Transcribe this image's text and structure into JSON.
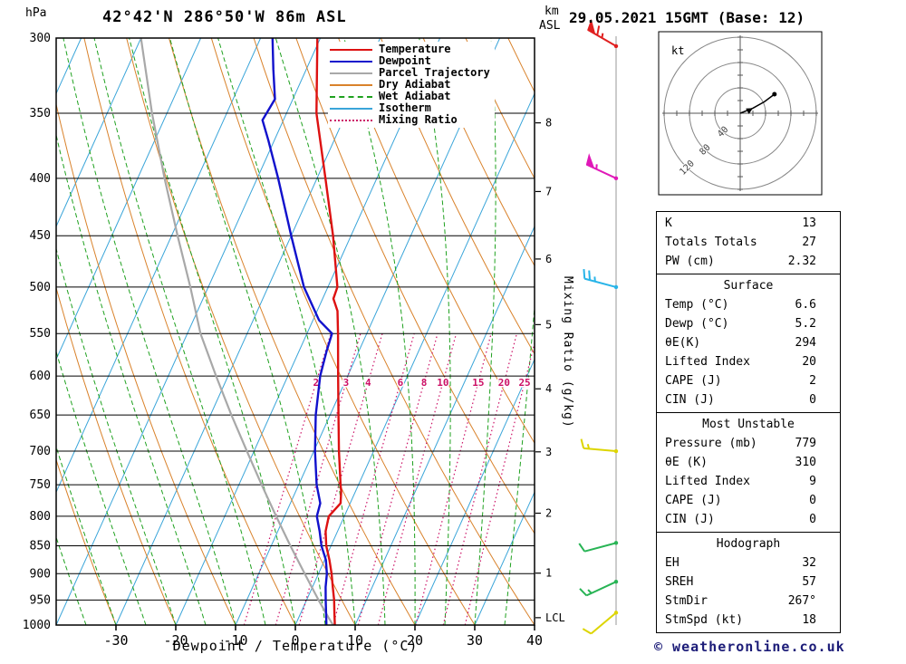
{
  "header": {
    "station": "42°42'N 286°50'W 86m ASL",
    "datetime": "29.05.2021 15GMT (Base: 12)"
  },
  "axes": {
    "pressure_unit": "hPa",
    "altitude_unit_line1": "km",
    "altitude_unit_line2": "ASL",
    "pressure_ticks": [
      300,
      350,
      400,
      450,
      500,
      550,
      600,
      650,
      700,
      750,
      800,
      850,
      900,
      950,
      1000
    ],
    "temp_ticks": [
      -30,
      -20,
      -10,
      0,
      10,
      20,
      30,
      40
    ],
    "xlabel": "Dewpoint / Temperature (°C)",
    "right_axis_label": "Mixing Ratio (g/kg)",
    "km_ticks": [
      {
        "km": 8,
        "p": 357
      },
      {
        "km": 7,
        "p": 411
      },
      {
        "km": 6,
        "p": 472
      },
      {
        "km": 5,
        "p": 540
      },
      {
        "km": 4,
        "p": 616
      },
      {
        "km": 3,
        "p": 701
      },
      {
        "km": 2,
        "p": 795
      },
      {
        "km": 1,
        "p": 899
      }
    ],
    "lcl_label": "LCL",
    "lcl_pressure": 985
  },
  "legend": [
    {
      "label": "Temperature",
      "color": "#dd1111",
      "style": "solid"
    },
    {
      "label": "Dewpoint",
      "color": "#1111cc",
      "style": "solid"
    },
    {
      "label": "Parcel Trajectory",
      "color": "#a8a8a8",
      "style": "solid"
    },
    {
      "label": "Dry Adiabat",
      "color": "#d9822b",
      "style": "solid"
    },
    {
      "label": "Wet Adiabat",
      "color": "#1fa11f",
      "style": "dashed"
    },
    {
      "label": "Isotherm",
      "color": "#3aa5d9",
      "style": "solid"
    },
    {
      "label": "Mixing Ratio",
      "color": "#cc1166",
      "style": "dotted"
    }
  ],
  "chart_data": {
    "type": "skewt-logp",
    "pressure_axis": {
      "min": 300,
      "max": 1000,
      "scale": "log"
    },
    "temp_axis": {
      "min": -40,
      "max": 40,
      "unit": "°C"
    },
    "skew": 0.45,
    "isotherm_step": 10,
    "dry_adiabat_step": 10,
    "wet_adiabat_step": 5,
    "mixing_ratio_labels": [
      2,
      3,
      4,
      6,
      8,
      10,
      15,
      20,
      25
    ],
    "colors": {
      "temperature": "#dd1111",
      "dewpoint": "#1111cc",
      "parcel": "#a8a8a8",
      "dry_adiabat": "#d9822b",
      "wet_adiabat": "#1fa11f",
      "isotherm": "#3aa5d9",
      "mixing_ratio": "#cc1166",
      "grid": "#000000",
      "barb_line": "#999999"
    },
    "temperature_profile": [
      [
        1000,
        6.6
      ],
      [
        975,
        5.6
      ],
      [
        950,
        4.6
      ],
      [
        925,
        3.4
      ],
      [
        900,
        2.2
      ],
      [
        875,
        0.8
      ],
      [
        850,
        -0.8
      ],
      [
        825,
        -2.0
      ],
      [
        800,
        -2.6
      ],
      [
        779,
        -1.6
      ],
      [
        760,
        -2.4
      ],
      [
        750,
        -3.0
      ],
      [
        700,
        -5.8
      ],
      [
        650,
        -8.6
      ],
      [
        600,
        -11.6
      ],
      [
        550,
        -14.8
      ],
      [
        525,
        -16.6
      ],
      [
        512,
        -18.2
      ],
      [
        500,
        -18.4
      ],
      [
        450,
        -23.0
      ],
      [
        400,
        -28.6
      ],
      [
        350,
        -35.0
      ],
      [
        300,
        -40.5
      ]
    ],
    "dewpoint_profile": [
      [
        1000,
        5.2
      ],
      [
        975,
        4.2
      ],
      [
        950,
        3.2
      ],
      [
        925,
        2.2
      ],
      [
        900,
        1.4
      ],
      [
        875,
        0.2
      ],
      [
        850,
        -1.6
      ],
      [
        825,
        -3.0
      ],
      [
        800,
        -4.6
      ],
      [
        779,
        -5.0
      ],
      [
        750,
        -7.0
      ],
      [
        700,
        -9.8
      ],
      [
        650,
        -12.4
      ],
      [
        600,
        -14.6
      ],
      [
        570,
        -15.4
      ],
      [
        550,
        -15.8
      ],
      [
        535,
        -19.0
      ],
      [
        500,
        -24.0
      ],
      [
        450,
        -30.0
      ],
      [
        400,
        -36.5
      ],
      [
        370,
        -41.0
      ],
      [
        355,
        -43.5
      ],
      [
        340,
        -43.0
      ],
      [
        320,
        -45.5
      ],
      [
        300,
        -48.0
      ]
    ],
    "parcel_profile": [
      [
        1000,
        6.3
      ],
      [
        985,
        5.0
      ],
      [
        950,
        2.0
      ],
      [
        900,
        -2.3
      ],
      [
        850,
        -6.8
      ],
      [
        800,
        -11.4
      ],
      [
        750,
        -16.2
      ],
      [
        700,
        -21.2
      ],
      [
        650,
        -26.5
      ],
      [
        600,
        -32.0
      ],
      [
        550,
        -37.8
      ],
      [
        500,
        -43.0
      ],
      [
        450,
        -49.0
      ],
      [
        400,
        -55.5
      ],
      [
        350,
        -62.5
      ],
      [
        300,
        -70.0
      ]
    ],
    "wind_barbs": [
      {
        "p": 305,
        "dir": 300,
        "speed": 65,
        "color": "#e02020"
      },
      {
        "p": 400,
        "dir": 295,
        "speed": 55,
        "color": "#e019b8"
      },
      {
        "p": 500,
        "dir": 285,
        "speed": 25,
        "color": "#28b4e8"
      },
      {
        "p": 700,
        "dir": 275,
        "speed": 15,
        "color": "#ddd500"
      },
      {
        "p": 845,
        "dir": 255,
        "speed": 10,
        "color": "#28b455"
      },
      {
        "p": 915,
        "dir": 245,
        "speed": 15,
        "color": "#28b455"
      },
      {
        "p": 975,
        "dir": 230,
        "speed": 10,
        "color": "#ddd500"
      }
    ],
    "hodograph": {
      "unit": "kt",
      "ring_step_kt": 40,
      "ring_labels": [
        "120",
        "80",
        "40"
      ],
      "trace_kt": [
        [
          0,
          0
        ],
        [
          20,
          8
        ],
        [
          38,
          18
        ],
        [
          54,
          30
        ]
      ]
    }
  },
  "table": {
    "sections": [
      {
        "header": null,
        "rows": [
          [
            "K",
            "13"
          ],
          [
            "Totals Totals",
            "27"
          ],
          [
            "PW (cm)",
            "2.32"
          ]
        ]
      },
      {
        "header": "Surface",
        "rows": [
          [
            "Temp (°C)",
            "6.6"
          ],
          [
            "Dewp (°C)",
            "5.2"
          ],
          [
            "θE(K)",
            "294"
          ],
          [
            "Lifted Index",
            "20"
          ],
          [
            "CAPE (J)",
            "2"
          ],
          [
            "CIN (J)",
            "0"
          ]
        ]
      },
      {
        "header": "Most Unstable",
        "rows": [
          [
            "Pressure (mb)",
            "779"
          ],
          [
            "θE (K)",
            "310"
          ],
          [
            "Lifted Index",
            "9"
          ],
          [
            "CAPE (J)",
            "0"
          ],
          [
            "CIN (J)",
            "0"
          ]
        ]
      },
      {
        "header": "Hodograph",
        "rows": [
          [
            "EH",
            "32"
          ],
          [
            "SREH",
            "57"
          ],
          [
            "StmDir",
            "267°"
          ],
          [
            "StmSpd (kt)",
            "18"
          ]
        ]
      }
    ]
  },
  "footer": "© weatheronline.co.uk"
}
